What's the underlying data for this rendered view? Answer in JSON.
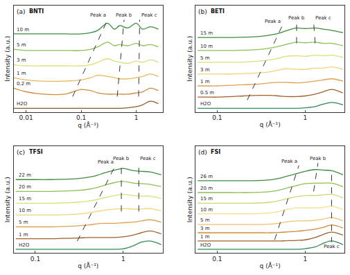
{
  "chart_data": [
    {
      "type": "line",
      "title": "(a)",
      "subtitle": "BNTI",
      "x_label": "q (Å⁻¹)",
      "y_label": "Intensity (a.u.)",
      "log": "x",
      "grid": false,
      "tick_labels": "x",
      "xlim": [
        0.006,
        3
      ],
      "xticks": [
        0.01,
        0.1,
        1
      ],
      "ylim": [
        0,
        9
      ],
      "x": [
        0.006,
        0.01,
        0.02,
        0.05,
        0.1,
        0.15,
        0.2,
        0.3,
        0.4,
        0.5,
        0.7,
        1,
        1.3,
        1.8,
        2.5
      ],
      "series": [
        {
          "name": "H2O",
          "color": "#8b5a2b",
          "values": [
            0.3,
            0.3,
            0.3,
            0.3,
            0.3,
            0.3,
            0.3,
            0.3,
            0.3,
            0.3,
            0.35,
            0.45,
            0.6,
            0.9,
            0.7
          ]
        },
        {
          "name": "0.2 m",
          "color": "#d08a3a",
          "values": [
            2.0,
            1.7,
            1.5,
            1.5,
            1.9,
            1.8,
            1.6,
            1.5,
            1.5,
            1.5,
            1.5,
            1.6,
            1.7,
            2.0,
            1.8
          ]
        },
        {
          "name": "1 m",
          "color": "#e8b860",
          "values": [
            2.9,
            2.7,
            2.6,
            2.6,
            2.7,
            2.9,
            3.1,
            3.0,
            2.9,
            2.8,
            2.8,
            2.9,
            3.0,
            3.2,
            3.0
          ]
        },
        {
          "name": "3 m",
          "color": "#d9e07a",
          "values": [
            4.0,
            3.9,
            3.9,
            3.9,
            3.9,
            4.0,
            4.2,
            4.5,
            4.3,
            4.2,
            4.1,
            4.3,
            4.2,
            4.4,
            4.2
          ]
        },
        {
          "name": "5 m",
          "color": "#8cc152",
          "values": [
            5.3,
            5.2,
            5.2,
            5.2,
            5.2,
            5.3,
            5.5,
            5.9,
            5.6,
            5.7,
            5.6,
            5.8,
            5.6,
            5.7,
            5.5
          ]
        },
        {
          "name": "10 m",
          "color": "#3d8c3d",
          "values": [
            6.6,
            6.6,
            6.6,
            6.6,
            6.6,
            6.7,
            6.9,
            7.5,
            7.0,
            7.3,
            7.1,
            7.5,
            7.0,
            7.2,
            7.0
          ]
        },
        {
          "name": "Peak a",
          "color": "#333333",
          "line_style": "dashed",
          "x": [
            0.07,
            0.3
          ],
          "values": [
            1.3,
            7.8
          ]
        },
        {
          "name": "Peak b",
          "color": "#333333",
          "line_style": "dashed",
          "x": [
            0.45,
            0.6
          ],
          "values": [
            1.3,
            7.8
          ]
        },
        {
          "name": "Peak c",
          "color": "#333333",
          "line_style": "dashed",
          "x": [
            1.1,
            1.15
          ],
          "values": [
            1.3,
            7.8
          ]
        }
      ]
    },
    {
      "type": "line",
      "title": "(b)",
      "subtitle": "BETI",
      "x_label": "q (Å⁻¹)",
      "y_label": "Intensity (a.u.)",
      "log": "x",
      "grid": false,
      "tick_labels": "x",
      "xlim": [
        0.057,
        2.8
      ],
      "xticks": [
        0.1,
        1
      ],
      "ylim": [
        0,
        9
      ],
      "x": [
        0.06,
        0.08,
        0.1,
        0.15,
        0.2,
        0.3,
        0.4,
        0.5,
        0.6,
        0.8,
        1.0,
        1.3,
        1.6,
        2.0,
        2.7
      ],
      "series": [
        {
          "name": "H2O",
          "color": "#2e8b57",
          "values": [
            0.3,
            0.3,
            0.3,
            0.3,
            0.3,
            0.3,
            0.3,
            0.3,
            0.3,
            0.3,
            0.35,
            0.45,
            0.65,
            0.8,
            0.6
          ]
        },
        {
          "name": "0.5 m",
          "color": "#a0602a",
          "values": [
            1.25,
            1.25,
            1.25,
            1.3,
            1.35,
            1.4,
            1.4,
            1.35,
            1.3,
            1.3,
            1.35,
            1.5,
            1.7,
            1.9,
            1.6
          ]
        },
        {
          "name": "1 m",
          "color": "#e0a050",
          "values": [
            2.2,
            2.2,
            2.2,
            2.25,
            2.3,
            2.35,
            2.45,
            2.5,
            2.5,
            2.45,
            2.5,
            2.6,
            2.7,
            2.8,
            2.6
          ]
        },
        {
          "name": "3 m",
          "color": "#f2d27a",
          "values": [
            3.2,
            3.2,
            3.2,
            3.2,
            3.25,
            3.3,
            3.4,
            3.55,
            3.65,
            3.6,
            3.6,
            3.7,
            3.7,
            3.8,
            3.6
          ]
        },
        {
          "name": "5 m",
          "color": "#d9e07a",
          "values": [
            4.2,
            4.2,
            4.2,
            4.2,
            4.22,
            4.3,
            4.4,
            4.55,
            4.7,
            4.75,
            4.7,
            4.8,
            4.75,
            4.8,
            4.6
          ]
        },
        {
          "name": "10 m",
          "color": "#8cc152",
          "values": [
            5.2,
            5.2,
            5.2,
            5.2,
            5.22,
            5.28,
            5.4,
            5.55,
            5.7,
            5.9,
            5.85,
            5.9,
            5.8,
            5.8,
            5.6
          ]
        },
        {
          "name": "15 m",
          "color": "#3d8c3d",
          "values": [
            6.3,
            6.3,
            6.3,
            6.3,
            6.32,
            6.38,
            6.5,
            6.65,
            6.85,
            7.1,
            7.05,
            7.1,
            7.0,
            6.9,
            6.7
          ]
        },
        {
          "name": "Peak a",
          "color": "#333333",
          "line_style": "dashed",
          "x": [
            0.22,
            0.55
          ],
          "values": [
            1.0,
            7.3
          ]
        },
        {
          "name": "Peak b",
          "color": "#333333",
          "line_style": "dashed",
          "x": [
            0.8,
            0.8
          ],
          "values": [
            5.8,
            7.6
          ]
        },
        {
          "name": "Peak c",
          "color": "#333333",
          "line_style": "dashed",
          "x": [
            1.3,
            1.25
          ],
          "values": [
            5.8,
            7.6
          ]
        }
      ]
    },
    {
      "type": "line",
      "title": "(c)",
      "subtitle": "TFSI",
      "x_label": "q (Å⁻¹)",
      "y_label": "Intensity (a.u.)",
      "log": "x",
      "grid": false,
      "tick_labels": "x",
      "xlim": [
        0.057,
        2.8
      ],
      "xticks": [
        0.1,
        1
      ],
      "ylim": [
        0,
        9
      ],
      "x": [
        0.06,
        0.08,
        0.1,
        0.15,
        0.2,
        0.3,
        0.4,
        0.5,
        0.6,
        0.8,
        1.0,
        1.3,
        1.6,
        2.0,
        2.7
      ],
      "series": [
        {
          "name": "H2O",
          "color": "#2e8b57",
          "values": [
            0.3,
            0.3,
            0.3,
            0.3,
            0.3,
            0.3,
            0.3,
            0.3,
            0.3,
            0.3,
            0.35,
            0.6,
            0.9,
            1.0,
            0.7
          ]
        },
        {
          "name": "1 m",
          "color": "#a0602a",
          "values": [
            1.2,
            1.2,
            1.2,
            1.2,
            1.22,
            1.25,
            1.3,
            1.3,
            1.3,
            1.3,
            1.35,
            1.5,
            1.7,
            1.85,
            1.6
          ]
        },
        {
          "name": "5 m",
          "color": "#e0a050",
          "values": [
            2.2,
            2.2,
            2.2,
            2.2,
            2.22,
            2.28,
            2.35,
            2.45,
            2.5,
            2.5,
            2.55,
            2.6,
            2.7,
            2.8,
            2.6
          ]
        },
        {
          "name": "10 m",
          "color": "#f2d27a",
          "values": [
            3.2,
            3.2,
            3.2,
            3.2,
            3.22,
            3.28,
            3.38,
            3.5,
            3.6,
            3.7,
            3.75,
            3.7,
            3.7,
            3.75,
            3.55
          ]
        },
        {
          "name": "15 m",
          "color": "#d9e07a",
          "values": [
            4.2,
            4.2,
            4.2,
            4.2,
            4.22,
            4.28,
            4.38,
            4.5,
            4.65,
            4.85,
            4.95,
            4.85,
            4.8,
            4.8,
            4.6
          ]
        },
        {
          "name": "20 m",
          "color": "#8cc152",
          "values": [
            5.2,
            5.2,
            5.2,
            5.2,
            5.22,
            5.28,
            5.38,
            5.52,
            5.7,
            5.95,
            6.05,
            5.9,
            5.85,
            5.8,
            5.6
          ]
        },
        {
          "name": "22 m",
          "color": "#3d8c3d",
          "values": [
            6.2,
            6.2,
            6.2,
            6.2,
            6.22,
            6.28,
            6.4,
            6.55,
            6.75,
            7.0,
            7.15,
            6.95,
            6.9,
            6.85,
            6.6
          ]
        },
        {
          "name": "Peak a",
          "color": "#333333",
          "line_style": "dashed",
          "x": [
            0.3,
            0.8
          ],
          "values": [
            1.0,
            7.3
          ]
        },
        {
          "name": "Peak b",
          "color": "#333333",
          "line_style": "dashed",
          "x": [
            0.95,
            0.95
          ],
          "values": [
            3.5,
            7.6
          ]
        },
        {
          "name": "Peak c",
          "color": "#333333",
          "line_style": "dashed",
          "x": [
            1.5,
            1.5
          ],
          "values": [
            3.5,
            7.6
          ]
        }
      ]
    },
    {
      "type": "line",
      "title": "(d)",
      "subtitle": "FSI",
      "x_label": "q (Å⁻¹)",
      "y_label": "Intensity (a.u.)",
      "log": "x",
      "grid": false,
      "tick_labels": "x",
      "xlim": [
        0.057,
        2.8
      ],
      "xticks": [
        0.1,
        1
      ],
      "ylim": [
        0,
        9
      ],
      "x": [
        0.06,
        0.08,
        0.1,
        0.15,
        0.2,
        0.3,
        0.4,
        0.5,
        0.6,
        0.8,
        1.0,
        1.3,
        1.6,
        2.0,
        2.7
      ],
      "series": [
        {
          "name": "H2O",
          "color": "#2e8b57",
          "values": [
            0.3,
            0.3,
            0.3,
            0.3,
            0.3,
            0.3,
            0.3,
            0.3,
            0.3,
            0.3,
            0.35,
            0.5,
            0.8,
            1.0,
            0.7
          ]
        },
        {
          "name": "1 m",
          "color": "#a0602a",
          "values": [
            1.0,
            1.0,
            1.0,
            1.0,
            1.0,
            1.0,
            1.0,
            1.0,
            1.02,
            1.05,
            1.1,
            1.3,
            1.55,
            1.75,
            1.5
          ]
        },
        {
          "name": "3 m",
          "color": "#d08a3a",
          "values": [
            1.7,
            1.7,
            1.7,
            1.7,
            1.7,
            1.7,
            1.7,
            1.72,
            1.76,
            1.82,
            1.9,
            2.0,
            2.15,
            2.35,
            2.1
          ]
        },
        {
          "name": "5 m",
          "color": "#f0c070",
          "values": [
            2.4,
            2.4,
            2.4,
            2.4,
            2.4,
            2.4,
            2.42,
            2.5,
            2.6,
            2.7,
            2.7,
            2.75,
            2.85,
            3.0,
            2.7
          ]
        },
        {
          "name": "10 m",
          "color": "#f2e08a",
          "values": [
            3.3,
            3.3,
            3.3,
            3.3,
            3.3,
            3.32,
            3.38,
            3.5,
            3.65,
            3.8,
            3.8,
            3.8,
            3.85,
            3.95,
            3.65
          ]
        },
        {
          "name": "15 m",
          "color": "#c5dc72",
          "values": [
            4.2,
            4.2,
            4.2,
            4.2,
            4.2,
            4.22,
            4.28,
            4.4,
            4.55,
            4.75,
            4.85,
            4.85,
            4.9,
            4.95,
            4.65
          ]
        },
        {
          "name": "20 m",
          "color": "#8cc152",
          "values": [
            5.1,
            5.1,
            5.1,
            5.1,
            5.1,
            5.12,
            5.18,
            5.3,
            5.45,
            5.7,
            5.85,
            5.9,
            5.9,
            5.9,
            5.6
          ]
        },
        {
          "name": "26 m",
          "color": "#3d8c3d",
          "values": [
            6.1,
            6.1,
            6.1,
            6.1,
            6.1,
            6.12,
            6.18,
            6.3,
            6.45,
            6.7,
            6.9,
            7.05,
            7.0,
            6.95,
            6.6
          ]
        },
        {
          "name": "Peak a",
          "color": "#333333",
          "line_style": "dashed",
          "x": [
            0.45,
            0.85
          ],
          "values": [
            1.1,
            7.4
          ]
        },
        {
          "name": "Peak b",
          "color": "#333333",
          "line_style": "dashed",
          "x": [
            1.25,
            1.4
          ],
          "values": [
            5.2,
            7.6
          ]
        },
        {
          "name": "Peak c",
          "color": "#333333",
          "line_style": "dashed",
          "x": [
            2.0,
            2.0
          ],
          "values": [
            6.6,
            0.9
          ]
        }
      ]
    }
  ]
}
